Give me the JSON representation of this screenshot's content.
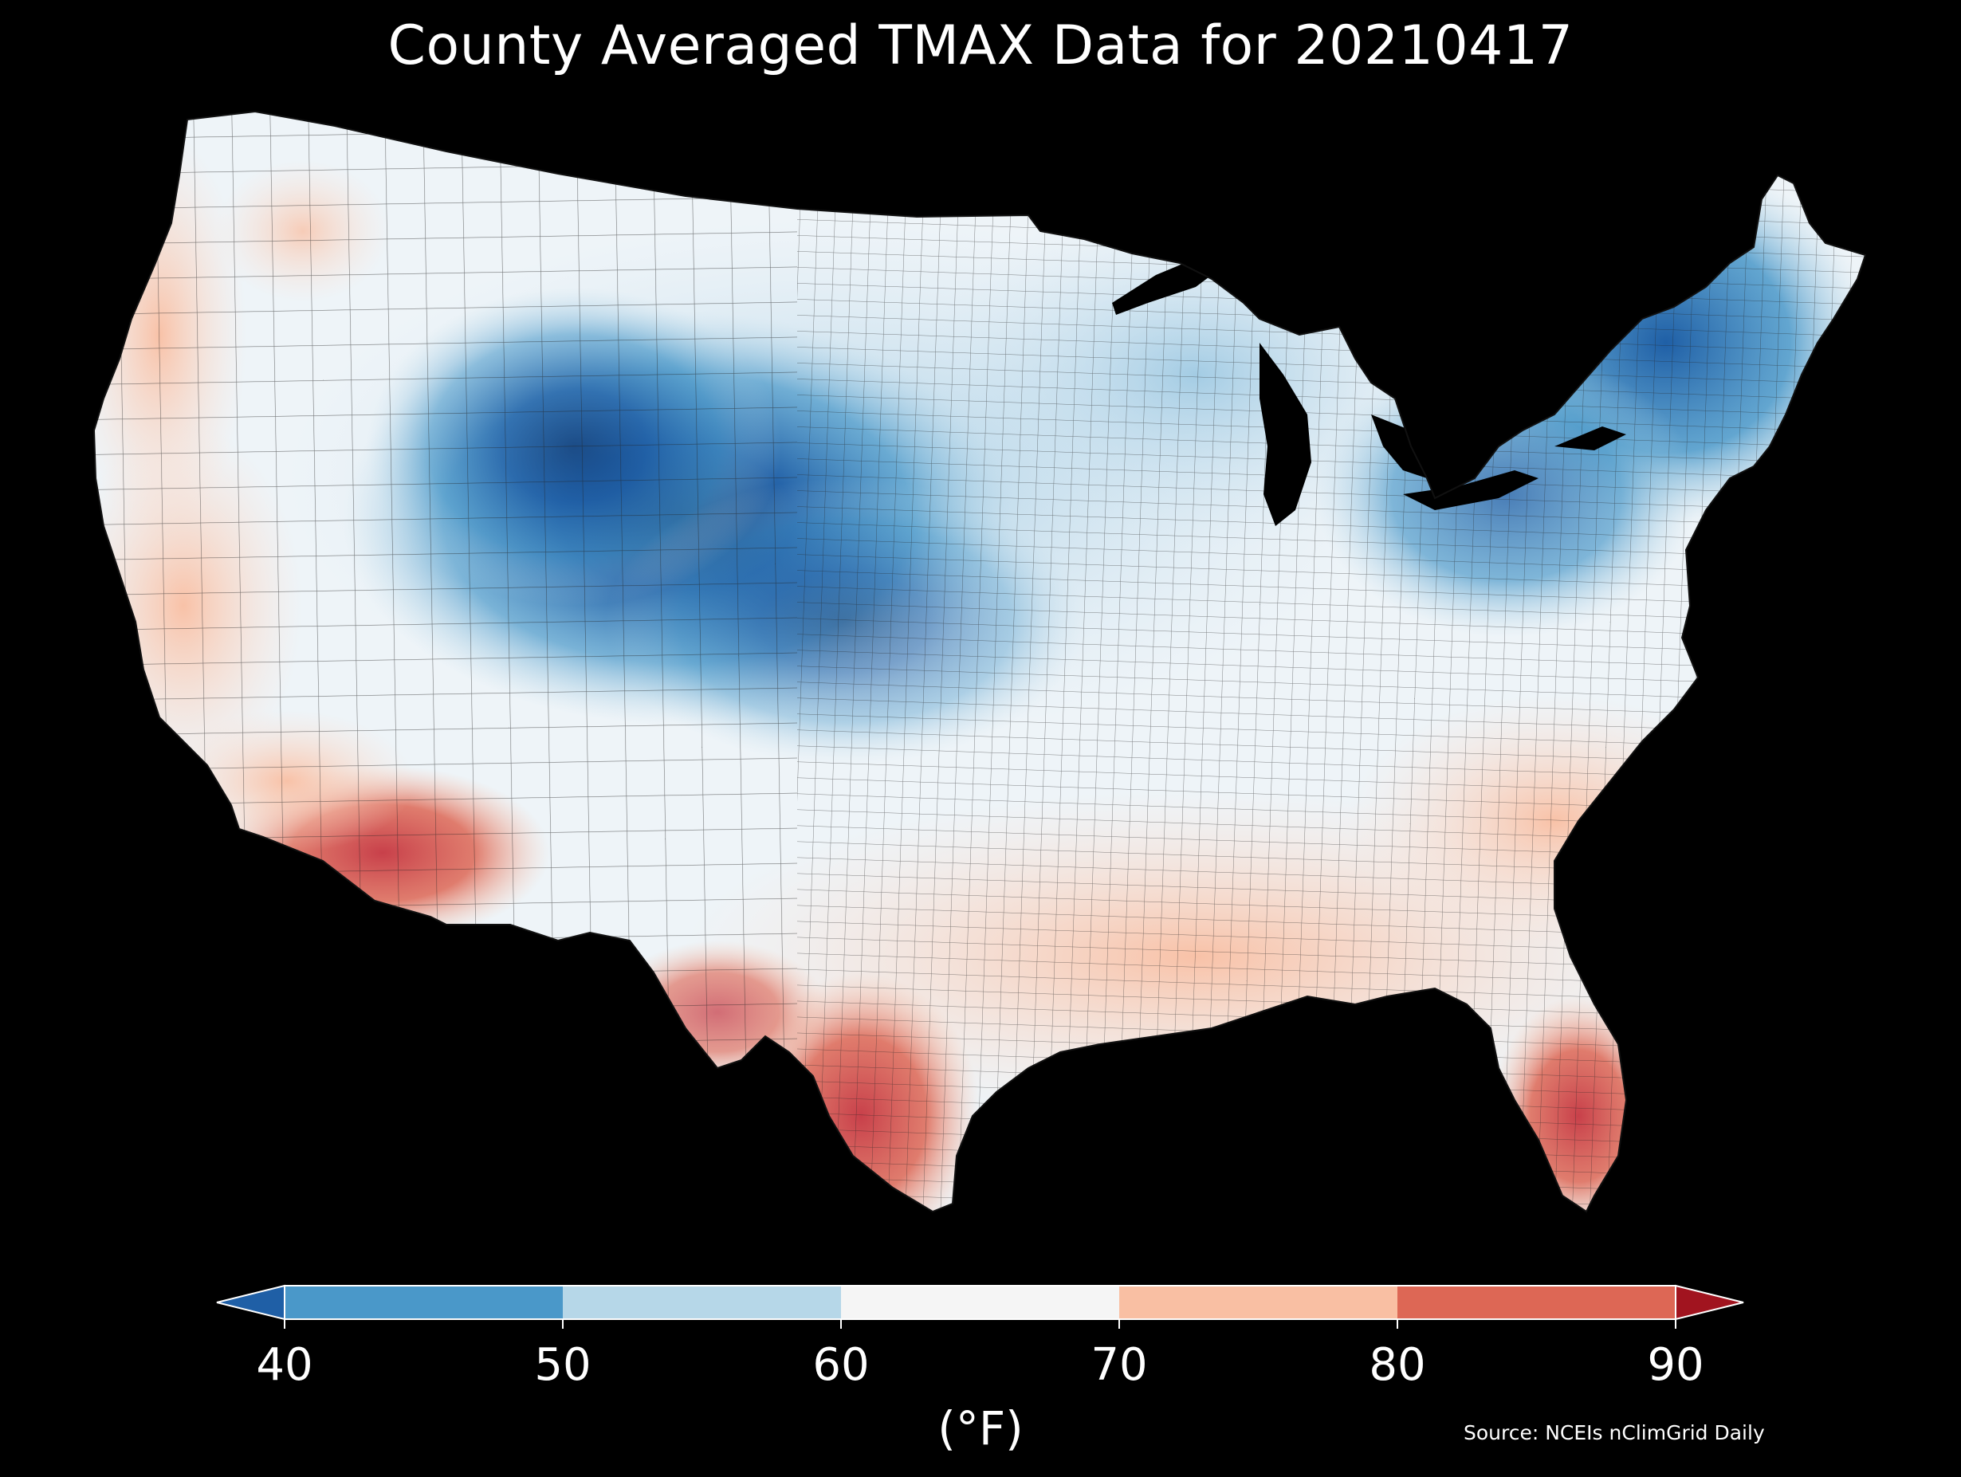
{
  "title": "County Averaged TMAX Data for 20210417",
  "source": "Source: NCEIs nClimGrid Daily",
  "colorbar": {
    "unit": "(°F)",
    "ticks": [
      "40",
      "50",
      "60",
      "70",
      "80",
      "90"
    ],
    "bins": [
      {
        "from": 40,
        "to": 50,
        "color": "#4a98c9"
      },
      {
        "from": 50,
        "to": 60,
        "color": "#b6d7e8"
      },
      {
        "from": 60,
        "to": 70,
        "color": "#f5f5f5"
      },
      {
        "from": 70,
        "to": 80,
        "color": "#f9bfa3"
      },
      {
        "from": 80,
        "to": 90,
        "color": "#dd6755"
      }
    ],
    "under_color": "#1f5fa6",
    "over_color": "#a1141f"
  },
  "map": {
    "variable": "TMAX",
    "date": "20210417",
    "region": "Contiguous United States",
    "geography": "counties",
    "background_color": "#000000",
    "border_color": "#1a1a1a",
    "water_color": "#000000"
  }
}
